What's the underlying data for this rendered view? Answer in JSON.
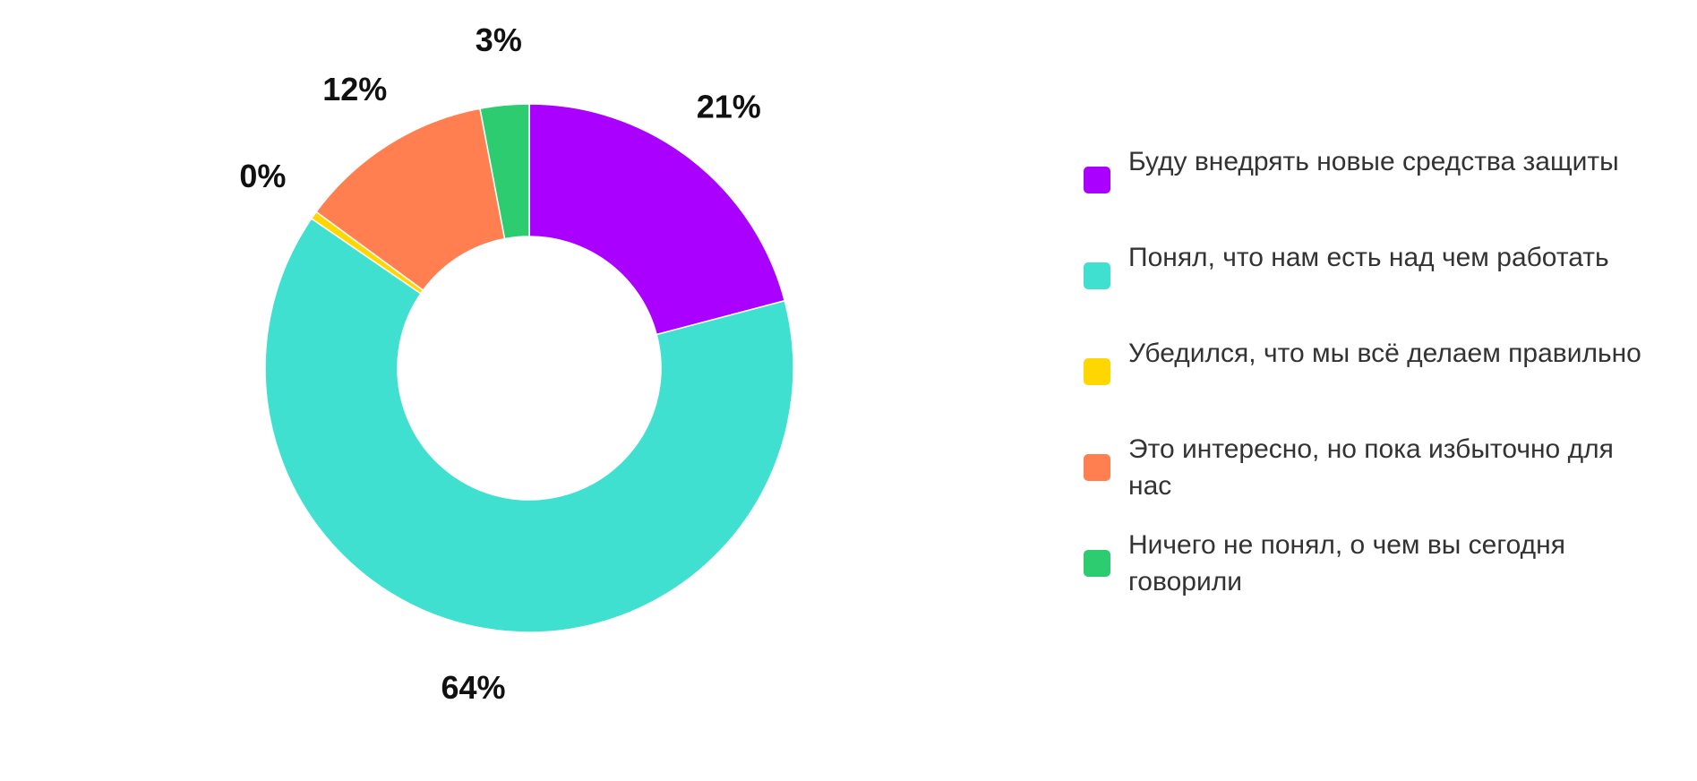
{
  "chart_data": {
    "type": "pie",
    "donut": true,
    "legend_position": "right",
    "categories": [
      "Буду внедрять новые средства защиты",
      "Понял, что нам есть над чем работать",
      "Убедился, что мы всё делаем правильно",
      "Это интересно, но пока избыточно для нас",
      "Ничего не понял, о чем вы сегодня говорили"
    ],
    "values": [
      21,
      64,
      0.5,
      12,
      3
    ],
    "data_labels": [
      "21%",
      "64%",
      "0%",
      "12%",
      "3%"
    ],
    "colors": [
      "#AA00FF",
      "#40E0D0",
      "#FFD700",
      "#FF7F50",
      "#2ECC71"
    ]
  }
}
